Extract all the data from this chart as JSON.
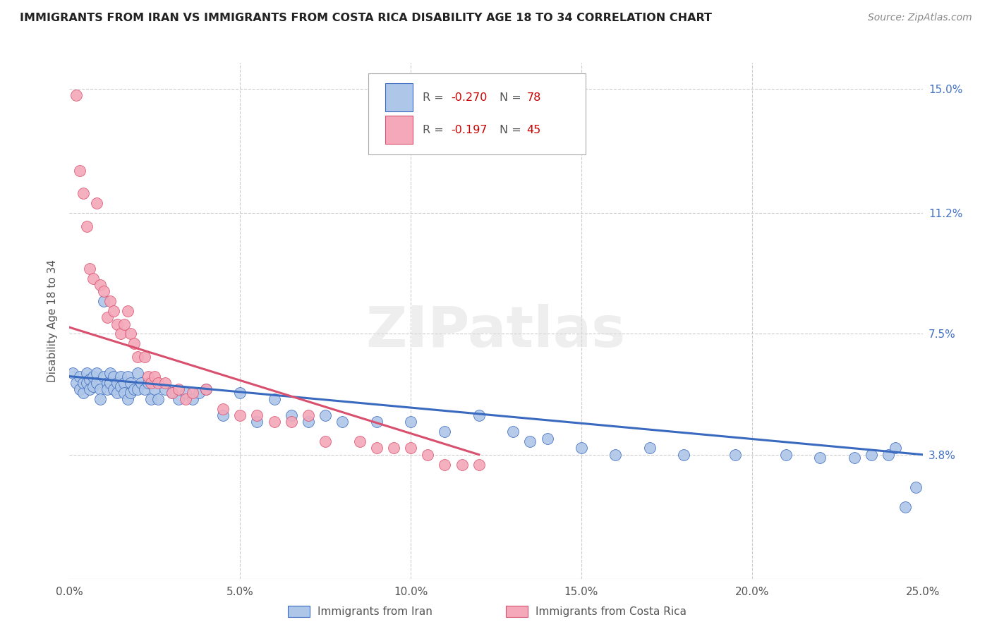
{
  "title": "IMMIGRANTS FROM IRAN VS IMMIGRANTS FROM COSTA RICA DISABILITY AGE 18 TO 34 CORRELATION CHART",
  "source": "Source: ZipAtlas.com",
  "ylabel_label": "Disability Age 18 to 34",
  "xlim": [
    0.0,
    0.25
  ],
  "ylim": [
    0.0,
    0.158
  ],
  "ytick_vals": [
    0.038,
    0.075,
    0.112,
    0.15
  ],
  "ytick_labels": [
    "3.8%",
    "7.5%",
    "11.2%",
    "15.0%"
  ],
  "xtick_vals": [
    0.0,
    0.05,
    0.1,
    0.15,
    0.2,
    0.25
  ],
  "xtick_labels": [
    "0.0%",
    "5.0%",
    "10.0%",
    "15.0%",
    "20.0%",
    "25.0%"
  ],
  "iran_R": "-0.270",
  "iran_N": "78",
  "costa_rica_R": "-0.197",
  "costa_rica_N": "45",
  "iran_color": "#aec6e8",
  "costa_rica_color": "#f4a8ba",
  "iran_line_color": "#3a6abf",
  "costa_rica_line_color": "#d94f6e",
  "watermark": "ZIPatlas",
  "background_color": "#ffffff",
  "iran_x": [
    0.001,
    0.002,
    0.003,
    0.003,
    0.004,
    0.004,
    0.005,
    0.005,
    0.006,
    0.006,
    0.007,
    0.007,
    0.008,
    0.008,
    0.009,
    0.009,
    0.01,
    0.01,
    0.011,
    0.011,
    0.012,
    0.012,
    0.013,
    0.013,
    0.014,
    0.014,
    0.015,
    0.015,
    0.016,
    0.016,
    0.017,
    0.017,
    0.018,
    0.018,
    0.019,
    0.02,
    0.02,
    0.021,
    0.022,
    0.023,
    0.024,
    0.025,
    0.026,
    0.028,
    0.03,
    0.032,
    0.034,
    0.036,
    0.038,
    0.04,
    0.045,
    0.05,
    0.055,
    0.06,
    0.065,
    0.07,
    0.075,
    0.08,
    0.09,
    0.1,
    0.11,
    0.12,
    0.13,
    0.135,
    0.14,
    0.15,
    0.16,
    0.17,
    0.18,
    0.195,
    0.21,
    0.22,
    0.23,
    0.235,
    0.24,
    0.242,
    0.245,
    0.248
  ],
  "iran_y": [
    0.063,
    0.06,
    0.058,
    0.062,
    0.057,
    0.06,
    0.063,
    0.06,
    0.061,
    0.058,
    0.062,
    0.059,
    0.063,
    0.06,
    0.058,
    0.055,
    0.062,
    0.085,
    0.06,
    0.058,
    0.063,
    0.06,
    0.062,
    0.058,
    0.06,
    0.057,
    0.062,
    0.059,
    0.06,
    0.057,
    0.062,
    0.055,
    0.06,
    0.057,
    0.058,
    0.063,
    0.058,
    0.06,
    0.058,
    0.06,
    0.055,
    0.058,
    0.055,
    0.058,
    0.057,
    0.055,
    0.057,
    0.055,
    0.057,
    0.058,
    0.05,
    0.057,
    0.048,
    0.055,
    0.05,
    0.048,
    0.05,
    0.048,
    0.048,
    0.048,
    0.045,
    0.05,
    0.045,
    0.042,
    0.043,
    0.04,
    0.038,
    0.04,
    0.038,
    0.038,
    0.038,
    0.037,
    0.037,
    0.038,
    0.038,
    0.04,
    0.022,
    0.028
  ],
  "costa_rica_x": [
    0.002,
    0.003,
    0.004,
    0.005,
    0.006,
    0.007,
    0.008,
    0.009,
    0.01,
    0.011,
    0.012,
    0.013,
    0.014,
    0.015,
    0.016,
    0.017,
    0.018,
    0.019,
    0.02,
    0.022,
    0.023,
    0.024,
    0.025,
    0.026,
    0.028,
    0.03,
    0.032,
    0.034,
    0.036,
    0.04,
    0.045,
    0.05,
    0.055,
    0.06,
    0.065,
    0.07,
    0.075,
    0.085,
    0.09,
    0.095,
    0.1,
    0.105,
    0.11,
    0.115,
    0.12
  ],
  "costa_rica_y": [
    0.148,
    0.125,
    0.118,
    0.108,
    0.095,
    0.092,
    0.115,
    0.09,
    0.088,
    0.08,
    0.085,
    0.082,
    0.078,
    0.075,
    0.078,
    0.082,
    0.075,
    0.072,
    0.068,
    0.068,
    0.062,
    0.06,
    0.062,
    0.06,
    0.06,
    0.057,
    0.058,
    0.055,
    0.057,
    0.058,
    0.052,
    0.05,
    0.05,
    0.048,
    0.048,
    0.05,
    0.042,
    0.042,
    0.04,
    0.04,
    0.04,
    0.038,
    0.035,
    0.035,
    0.035
  ],
  "iran_line_x0": 0.0,
  "iran_line_x1": 0.25,
  "iran_line_y0": 0.062,
  "iran_line_y1": 0.038,
  "costa_line_x0": 0.0,
  "costa_line_x1": 0.12,
  "costa_line_y0": 0.077,
  "costa_line_y1": 0.038
}
